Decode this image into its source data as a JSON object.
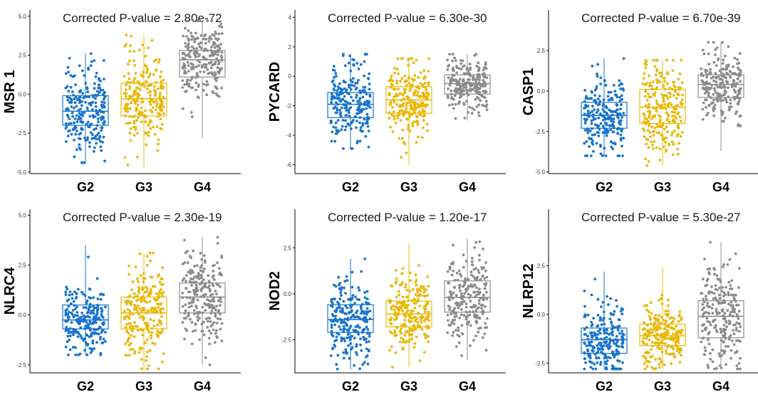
{
  "chart_data": [
    {
      "type": "box",
      "title": "Corrected P-value = 2.80e-72",
      "ylabel": "MSR 1",
      "categories": [
        "G2",
        "G3",
        "G4"
      ],
      "yticks": [
        5.0,
        2.5,
        0.0,
        -2.5,
        -5.0
      ],
      "ytick_labels": [
        "5.0",
        "2.5",
        "0.0",
        "-2.5",
        "-5.0"
      ],
      "ylim": [
        -5.1,
        5.4
      ],
      "colors": [
        "#1874CD",
        "#E8B80A",
        "#8C8C8C"
      ],
      "series": [
        {
          "name": "G2",
          "min": -4.4,
          "q1": -2.0,
          "median": -1.1,
          "q3": -0.1,
          "max": 2.6
        },
        {
          "name": "G3",
          "min": -4.7,
          "q1": -1.4,
          "median": -0.3,
          "q3": 0.7,
          "max": 3.8
        },
        {
          "name": "G4",
          "min": -2.8,
          "q1": 1.1,
          "median": 2.2,
          "q3": 2.8,
          "max": 4.7
        }
      ]
    },
    {
      "type": "box",
      "title": "Corrected P-value = 6.30e-30",
      "ylabel": "PYCARD",
      "categories": [
        "G2",
        "G3",
        "G4"
      ],
      "yticks": [
        4,
        2,
        0,
        -2,
        -4,
        -6
      ],
      "ytick_labels": [
        "4",
        "2",
        "0",
        "-2",
        "-4",
        "-6"
      ],
      "ylim": [
        -6.6,
        4.5
      ],
      "colors": [
        "#1874CD",
        "#E8B80A",
        "#8C8C8C"
      ],
      "series": [
        {
          "name": "G2",
          "min": -4.9,
          "q1": -2.8,
          "median": -1.9,
          "q3": -1.1,
          "max": 1.5
        },
        {
          "name": "G3",
          "min": -6.0,
          "q1": -2.5,
          "median": -1.6,
          "q3": -0.7,
          "max": 1.2
        },
        {
          "name": "G4",
          "min": -3.0,
          "q1": -1.2,
          "median": -0.5,
          "q3": 0.1,
          "max": 1.5
        }
      ]
    },
    {
      "type": "box",
      "title": "Corrected P-value = 6.70e-39",
      "ylabel": "CASP1",
      "categories": [
        "G2",
        "G3",
        "G4"
      ],
      "yticks": [
        2.5,
        0.0,
        -2.5,
        -5.0
      ],
      "ytick_labels": [
        "2.5",
        "0.0",
        "-2.5",
        "-5.0"
      ],
      "ylim": [
        -5.1,
        5.0
      ],
      "colors": [
        "#1874CD",
        "#E8B80A",
        "#8C8C8C"
      ],
      "series": [
        {
          "name": "G2",
          "min": -4.0,
          "q1": -2.3,
          "median": -1.5,
          "q3": -0.7,
          "max": 2.0
        },
        {
          "name": "G3",
          "min": -4.6,
          "q1": -2.0,
          "median": -1.0,
          "q3": 0.1,
          "max": 1.9
        },
        {
          "name": "G4",
          "min": -3.7,
          "q1": -0.4,
          "median": 0.4,
          "q3": 1.0,
          "max": 3.0
        }
      ]
    },
    {
      "type": "box",
      "title": "Corrected P-value = 2.30e-19",
      "ylabel": "NLRC4",
      "categories": [
        "G2",
        "G3",
        "G4"
      ],
      "yticks": [
        5.0,
        2.5,
        0.0,
        -2.5
      ],
      "ytick_labels": [
        "5.0",
        "2.5",
        "0.0",
        "-2.5"
      ],
      "ylim": [
        -2.9,
        5.3
      ],
      "colors": [
        "#1874CD",
        "#E8B80A",
        "#8C8C8C"
      ],
      "series": [
        {
          "name": "G2",
          "min": -2.0,
          "q1": -0.7,
          "median": -0.25,
          "q3": 0.5,
          "max": 3.5
        },
        {
          "name": "G3",
          "min": -2.7,
          "q1": -0.7,
          "median": 0.1,
          "q3": 0.9,
          "max": 3.1
        },
        {
          "name": "G4",
          "min": -2.5,
          "q1": 0.1,
          "median": 0.9,
          "q3": 1.6,
          "max": 3.9
        }
      ]
    },
    {
      "type": "box",
      "title": "Corrected P-value = 1.20e-17",
      "ylabel": "NOD2",
      "categories": [
        "G2",
        "G3",
        "G4"
      ],
      "yticks": [
        2.5,
        0.0,
        -2.5
      ],
      "ytick_labels": [
        "2.5",
        "0.0",
        "-2.5"
      ],
      "ylim": [
        -4.3,
        4.6
      ],
      "colors": [
        "#1874CD",
        "#E8B80A",
        "#8C8C8C"
      ],
      "series": [
        {
          "name": "G2",
          "min": -4.1,
          "q1": -2.1,
          "median": -1.4,
          "q3": -0.6,
          "max": 1.9
        },
        {
          "name": "G3",
          "min": -4.0,
          "q1": -1.8,
          "median": -1.1,
          "q3": -0.4,
          "max": 2.7
        },
        {
          "name": "G4",
          "min": -3.6,
          "q1": -1.0,
          "median": -0.2,
          "q3": 0.7,
          "max": 3.0
        }
      ]
    },
    {
      "type": "box",
      "title": "Corrected P-value = 5.30e-27",
      "ylabel": "NLRP12",
      "categories": [
        "G2",
        "G3",
        "G4"
      ],
      "yticks": [
        2.5,
        0.0,
        -2.5
      ],
      "ytick_labels": [
        "2.5",
        "0.0",
        "-2.5"
      ],
      "ylim": [
        -3.0,
        5.4
      ],
      "colors": [
        "#1874CD",
        "#E8B80A",
        "#8C8C8C"
      ],
      "series": [
        {
          "name": "G2",
          "min": -2.8,
          "q1": -2.0,
          "median": -1.3,
          "q3": -0.7,
          "max": 2.2
        },
        {
          "name": "G3",
          "min": -2.8,
          "q1": -1.6,
          "median": -1.1,
          "q3": -0.5,
          "max": 2.4
        },
        {
          "name": "G4",
          "min": -2.8,
          "q1": -1.2,
          "median": -0.1,
          "q3": 0.7,
          "max": 3.7
        }
      ]
    }
  ]
}
